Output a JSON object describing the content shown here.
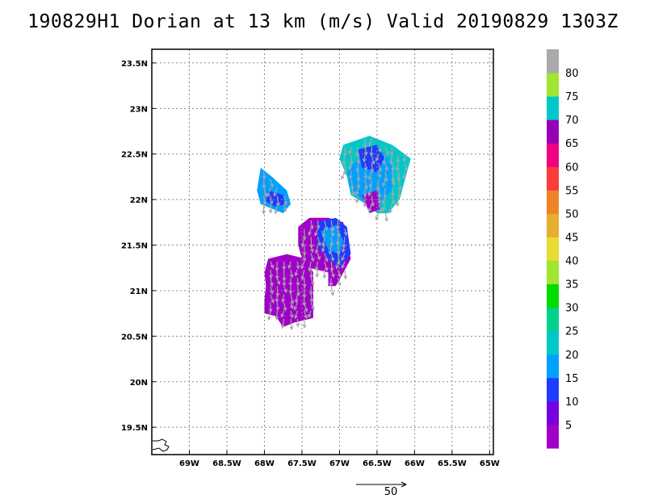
{
  "title": "190829H1 Dorian at 13 km (m/s) Valid 20190829 1303Z",
  "map": {
    "lon_range": [
      -69.5,
      -64.95
    ],
    "lat_range": [
      19.2,
      23.65
    ],
    "lon_ticks": [
      -69,
      -68.5,
      -68,
      -67.5,
      -67,
      -66.5,
      -66,
      -65.5,
      -65
    ],
    "lon_tick_labels": [
      "69W",
      "68.5W",
      "68W",
      "67.5W",
      "67W",
      "66.5W",
      "66W",
      "65.5W",
      "65W"
    ],
    "lat_ticks": [
      19.5,
      20,
      20.5,
      21,
      21.5,
      22,
      22.5,
      23,
      23.5
    ],
    "lat_tick_labels": [
      "19.5N",
      "20N",
      "20.5N",
      "21N",
      "21.5N",
      "22N",
      "22.5N",
      "23N",
      "23.5N"
    ],
    "grid": true,
    "grid_style": "dotted",
    "coastline": "small island outline at lower-left corner"
  },
  "colorbar": {
    "levels": [
      0,
      5,
      10,
      15,
      20,
      25,
      30,
      35,
      40,
      45,
      50,
      55,
      60,
      65,
      70,
      75,
      80,
      85
    ],
    "labels": [
      "5",
      "10",
      "15",
      "20",
      "25",
      "30",
      "35",
      "40",
      "45",
      "50",
      "55",
      "60",
      "65",
      "70",
      "75",
      "80"
    ],
    "colors": [
      "#a000c8",
      "#7800dc",
      "#1e3cff",
      "#00a0ff",
      "#00c8c8",
      "#00d28c",
      "#00dc00",
      "#a0e632",
      "#e6dc32",
      "#e6af2d",
      "#f08228",
      "#fa3c3c",
      "#f00082",
      "#9600b4",
      "#00c8c8",
      "#a0e632",
      "#aaaaaa"
    ]
  },
  "reference_vector": {
    "label": "50",
    "value_ms": 50
  },
  "wind_regions": [
    {
      "name": "south-purple-lobe",
      "color": "#a000c8",
      "polygon": [
        [
          -67.95,
          21.35
        ],
        [
          -67.7,
          21.4
        ],
        [
          -67.45,
          21.35
        ],
        [
          -67.35,
          21.2
        ],
        [
          -67.35,
          20.95
        ],
        [
          -67.35,
          20.7
        ],
        [
          -67.6,
          20.65
        ],
        [
          -67.75,
          20.6
        ],
        [
          -67.85,
          20.72
        ],
        [
          -68.0,
          20.75
        ],
        [
          -68.0,
          20.9
        ],
        [
          -67.98,
          21.05
        ],
        [
          -68.0,
          21.2
        ]
      ]
    },
    {
      "name": "central-purple-lobe",
      "color": "#a000c8",
      "polygon": [
        [
          -67.55,
          21.7
        ],
        [
          -67.4,
          21.8
        ],
        [
          -67.15,
          21.8
        ],
        [
          -66.95,
          21.75
        ],
        [
          -66.9,
          21.55
        ],
        [
          -66.85,
          21.35
        ],
        [
          -66.98,
          21.15
        ],
        [
          -67.05,
          21.05
        ],
        [
          -67.15,
          21.05
        ],
        [
          -67.15,
          21.2
        ],
        [
          -67.4,
          21.25
        ],
        [
          -67.5,
          21.35
        ],
        [
          -67.55,
          21.5
        ]
      ]
    },
    {
      "name": "central-blue-core",
      "color": "#1e3cff",
      "polygon": [
        [
          -67.3,
          21.75
        ],
        [
          -67.05,
          21.8
        ],
        [
          -66.9,
          21.7
        ],
        [
          -66.85,
          21.4
        ],
        [
          -67.0,
          21.25
        ],
        [
          -67.15,
          21.35
        ],
        [
          -67.3,
          21.5
        ]
      ]
    },
    {
      "name": "central-lightblue-core",
      "color": "#00a0ff",
      "polygon": [
        [
          -67.25,
          21.65
        ],
        [
          -67.05,
          21.72
        ],
        [
          -66.95,
          21.55
        ],
        [
          -67.0,
          21.4
        ],
        [
          -67.15,
          21.45
        ]
      ]
    },
    {
      "name": "west-blue-blob",
      "color": "#00a0ff",
      "polygon": [
        [
          -68.05,
          22.35
        ],
        [
          -67.9,
          22.25
        ],
        [
          -67.7,
          22.1
        ],
        [
          -67.65,
          21.95
        ],
        [
          -67.75,
          21.85
        ],
        [
          -67.9,
          21.9
        ],
        [
          -68.05,
          21.95
        ],
        [
          -68.1,
          22.1
        ]
      ]
    },
    {
      "name": "west-blue-core",
      "color": "#1e3cff",
      "polygon": [
        [
          -67.95,
          22.1
        ],
        [
          -67.75,
          22.05
        ],
        [
          -67.72,
          21.95
        ],
        [
          -67.85,
          21.92
        ],
        [
          -67.98,
          21.98
        ]
      ]
    },
    {
      "name": "ne-cyan-lobe",
      "color": "#00c8c8",
      "polygon": [
        [
          -66.95,
          22.6
        ],
        [
          -66.6,
          22.7
        ],
        [
          -66.3,
          22.6
        ],
        [
          -66.05,
          22.45
        ],
        [
          -66.1,
          22.3
        ],
        [
          -66.2,
          22.0
        ],
        [
          -66.35,
          21.85
        ],
        [
          -66.5,
          21.85
        ],
        [
          -66.65,
          21.95
        ],
        [
          -66.85,
          22.05
        ],
        [
          -66.9,
          22.25
        ],
        [
          -67.0,
          22.45
        ]
      ]
    },
    {
      "name": "ne-lightblue-lobe",
      "color": "#00a0ff",
      "polygon": [
        [
          -66.9,
          22.3
        ],
        [
          -66.7,
          22.5
        ],
        [
          -66.45,
          22.55
        ],
        [
          -66.3,
          22.4
        ],
        [
          -66.3,
          22.1
        ],
        [
          -66.45,
          21.95
        ],
        [
          -66.65,
          21.95
        ],
        [
          -66.85,
          22.1
        ]
      ]
    },
    {
      "name": "ne-blue-core",
      "color": "#1e3cff",
      "polygon": [
        [
          -66.75,
          22.55
        ],
        [
          -66.5,
          22.6
        ],
        [
          -66.4,
          22.45
        ],
        [
          -66.5,
          22.3
        ],
        [
          -66.7,
          22.35
        ]
      ]
    },
    {
      "name": "ne-purple-spot",
      "color": "#a000c8",
      "polygon": [
        [
          -66.7,
          22.05
        ],
        [
          -66.5,
          22.1
        ],
        [
          -66.45,
          21.9
        ],
        [
          -66.6,
          21.85
        ]
      ]
    }
  ]
}
